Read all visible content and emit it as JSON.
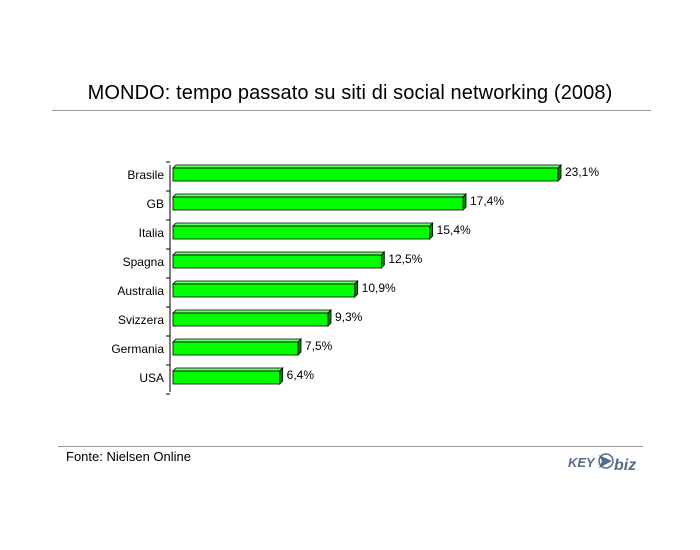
{
  "chart_data": {
    "type": "bar",
    "orientation": "horizontal",
    "title": "MONDO: tempo passato su siti di social networking (2008)",
    "categories": [
      "Brasile",
      "GB",
      "Italia",
      "Spagna",
      "Australia",
      "Svizzera",
      "Germania",
      "USA"
    ],
    "values": [
      23.1,
      17.4,
      15.4,
      12.5,
      10.9,
      9.3,
      7.5,
      6.4
    ],
    "value_labels": [
      "23,1%",
      "17,4%",
      "15,4%",
      "12,5%",
      "10,9%",
      "9,3%",
      "7,5%",
      "6,4%"
    ],
    "xlim": [
      0,
      23.1
    ],
    "bar_color": "#00ff00",
    "bar_dark_color": "#008800",
    "grid": false,
    "legend": "none"
  },
  "footer": {
    "source": "Fonte: Nielsen Online",
    "logo_text": "KEY4biz"
  },
  "colors": {
    "rule": "#9a9a9a",
    "logo": "#556b8a"
  }
}
